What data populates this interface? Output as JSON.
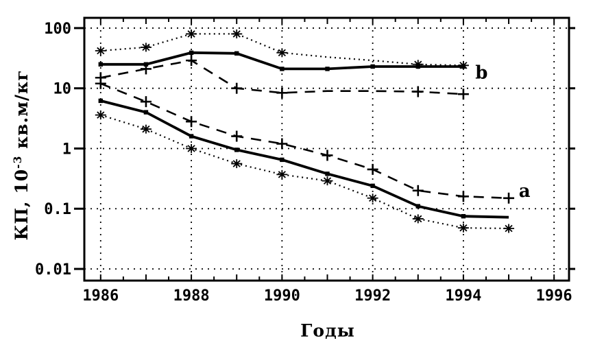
{
  "figure": {
    "background": "#ffffff",
    "ink_color": "#000000"
  },
  "chart_data": {
    "type": "line",
    "title": "",
    "xlabel": "Годы",
    "ylabel": "КП, 10⁻³ кв.м/кг",
    "ylabel_parts": {
      "prefix": "КП, 10",
      "sup": "-3",
      "suffix": " кв.м/кг"
    },
    "x_scale": "linear",
    "y_scale": "log",
    "xlim": [
      1985.64,
      1996.33
    ],
    "ylim": [
      0.0064,
      148
    ],
    "x_ticks": [
      1986,
      1988,
      1990,
      1992,
      1994,
      1996
    ],
    "x_tick_labels": [
      "1986",
      "1988",
      "1990",
      "1992",
      "1994",
      "1996"
    ],
    "x_minor_tick_step": 0.5,
    "y_ticks": [
      100,
      10,
      1,
      0.1,
      0.01
    ],
    "y_tick_labels": [
      "100",
      "10",
      "1",
      "0.1",
      "0.01"
    ],
    "grid": "dotted",
    "legend": "none",
    "series": [
      {
        "id": "b-asterisk-dotted",
        "group": "b",
        "line": "dotted",
        "marker": "asterisk",
        "years": [
          1986,
          1987,
          1988,
          1989,
          1990,
          1991,
          1992,
          1993,
          1994
        ],
        "values": [
          42,
          48,
          80,
          80,
          39,
          33,
          29,
          25,
          24
        ],
        "marker_years": [
          1986,
          1987,
          1988,
          1989,
          1990,
          1993,
          1994
        ]
      },
      {
        "id": "b-solid-square",
        "group": "b",
        "line": "solid",
        "marker": "square",
        "years": [
          1986,
          1987,
          1988,
          1989,
          1990,
          1991,
          1992,
          1993,
          1994
        ],
        "values": [
          25,
          25,
          39,
          38,
          21,
          21,
          23,
          23,
          23
        ],
        "marker_years": [
          1986,
          1987,
          1988,
          1989,
          1990,
          1991,
          1992,
          1993,
          1994
        ]
      },
      {
        "id": "b-plus-dashed",
        "group": "b",
        "line": "dashed",
        "marker": "plus",
        "years": [
          1986,
          1987,
          1988,
          1989,
          1990,
          1991,
          1992,
          1993,
          1994
        ],
        "values": [
          15,
          21,
          29,
          10,
          8.4,
          9,
          9,
          8.8,
          8
        ],
        "marker_years": [
          1986,
          1987,
          1988,
          1989,
          1990,
          1993,
          1994
        ]
      },
      {
        "id": "a-plus-dashed",
        "group": "a",
        "line": "dashed",
        "marker": "plus",
        "years": [
          1986,
          1987,
          1988,
          1989,
          1990,
          1991,
          1992,
          1993,
          1994,
          1995
        ],
        "values": [
          12,
          6,
          2.8,
          1.6,
          1.2,
          0.77,
          0.45,
          0.2,
          0.16,
          0.15
        ],
        "marker_years": [
          1986,
          1987,
          1988,
          1989,
          1990,
          1991,
          1992,
          1993,
          1994,
          1995
        ]
      },
      {
        "id": "a-solid-square",
        "group": "a",
        "line": "solid",
        "marker": "square",
        "years": [
          1986,
          1987,
          1988,
          1989,
          1990,
          1991,
          1992,
          1993,
          1994,
          1995
        ],
        "values": [
          6.2,
          4.0,
          1.6,
          0.95,
          0.65,
          0.38,
          0.24,
          0.11,
          0.075,
          0.072
        ],
        "marker_years": [
          1986,
          1987,
          1988,
          1989,
          1990,
          1991,
          1992,
          1993,
          1994
        ]
      },
      {
        "id": "a-asterisk-dotted",
        "group": "a",
        "line": "dotted",
        "marker": "asterisk",
        "years": [
          1986,
          1987,
          1988,
          1989,
          1990,
          1991,
          1992,
          1993,
          1994,
          1995
        ],
        "values": [
          3.6,
          2.1,
          1.0,
          0.56,
          0.37,
          0.29,
          0.15,
          0.068,
          0.048,
          0.047
        ],
        "marker_years": [
          1986,
          1987,
          1988,
          1989,
          1990,
          1991,
          1992,
          1993,
          1994,
          1995
        ]
      }
    ],
    "annotations": [
      {
        "text": "b",
        "x": 1994.4,
        "y": 18.5
      },
      {
        "text": "a",
        "x": 1995.35,
        "y": 0.2
      }
    ]
  }
}
